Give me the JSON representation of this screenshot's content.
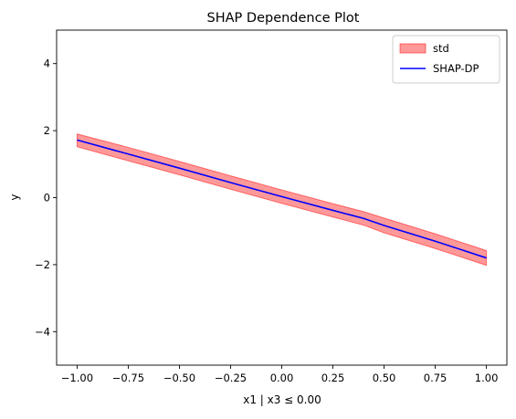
{
  "chart_data": {
    "type": "line",
    "title": "SHAP Dependence Plot",
    "xlabel": "x1 | x3 ≤ 0.00",
    "ylabel": "y",
    "xlim": [
      -1.1,
      1.1
    ],
    "ylim": [
      -5,
      5
    ],
    "x_ticks": [
      -1.0,
      -0.75,
      -0.5,
      -0.25,
      0.0,
      0.25,
      0.5,
      0.75,
      1.0
    ],
    "x_tick_labels": [
      "−1.00",
      "−0.75",
      "−0.50",
      "−0.25",
      "0.00",
      "0.25",
      "0.50",
      "0.75",
      "1.00"
    ],
    "y_ticks": [
      -4,
      -2,
      0,
      2,
      4
    ],
    "y_tick_labels": [
      "−4",
      "−2",
      "0",
      "2",
      "4"
    ],
    "grid": false,
    "legend_position": "top-right",
    "series": [
      {
        "name": "SHAP-DP",
        "kind": "line",
        "color": "#0000ff",
        "x": [
          -1.0,
          -0.75,
          -0.5,
          -0.25,
          0.0,
          0.25,
          0.4,
          0.5,
          0.75,
          1.0
        ],
        "y": [
          1.72,
          1.3,
          0.88,
          0.45,
          0.03,
          -0.38,
          -0.62,
          -0.83,
          -1.3,
          -1.8
        ]
      },
      {
        "name": "std",
        "kind": "band",
        "color": "#ff0000",
        "alpha": 0.4,
        "x": [
          -1.0,
          -0.75,
          -0.5,
          -0.25,
          0.0,
          0.25,
          0.4,
          0.5,
          0.75,
          1.0
        ],
        "lower": [
          1.52,
          1.1,
          0.68,
          0.25,
          -0.17,
          -0.58,
          -0.82,
          -1.05,
          -1.52,
          -2.02
        ],
        "upper": [
          1.9,
          1.5,
          1.08,
          0.65,
          0.23,
          -0.18,
          -0.42,
          -0.61,
          -1.08,
          -1.58
        ]
      }
    ],
    "legend": [
      {
        "label": "std",
        "kind": "band",
        "color": "#ff0000"
      },
      {
        "label": "SHAP-DP",
        "kind": "line",
        "color": "#0000ff"
      }
    ]
  }
}
